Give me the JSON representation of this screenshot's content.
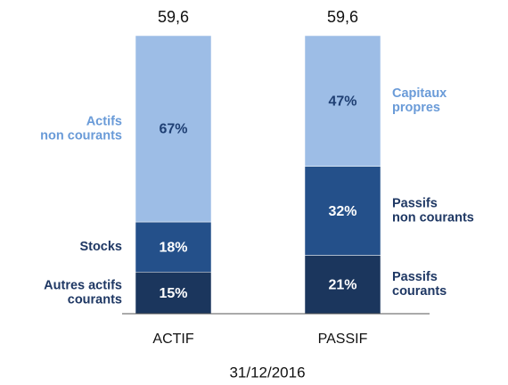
{
  "chart_data": {
    "type": "stacked_bar",
    "xlabel": "31/12/2016",
    "ylim": [
      0,
      100
    ],
    "bars": [
      {
        "category": "ACTIF",
        "total_label": "59,6",
        "segments": [
          {
            "name": [
              "Autres actifs",
              "courants"
            ],
            "value": 15,
            "value_label": "15%",
            "color": "#1b365d",
            "text_color": "#ffffff",
            "label_color": "#1f3864"
          },
          {
            "name": [
              "Stocks"
            ],
            "value": 18,
            "value_label": "18%",
            "color": "#24508a",
            "text_color": "#ffffff",
            "label_color": "#1f3864"
          },
          {
            "name": [
              "Actifs",
              "non courants"
            ],
            "value": 67,
            "value_label": "67%",
            "color": "#9dbde6",
            "text_color": "#1f3f73",
            "label_color": "#6a9bd8"
          }
        ]
      },
      {
        "category": "PASSIF",
        "total_label": "59,6",
        "segments": [
          {
            "name": [
              "Passifs",
              "courants"
            ],
            "value": 21,
            "value_label": "21%",
            "color": "#1b365d",
            "text_color": "#ffffff",
            "label_color": "#1f3864"
          },
          {
            "name": [
              "Passifs",
              "non courants"
            ],
            "value": 32,
            "value_label": "32%",
            "color": "#24508a",
            "text_color": "#ffffff",
            "label_color": "#1f3864"
          },
          {
            "name": [
              "Capitaux",
              "propres"
            ],
            "value": 47,
            "value_label": "47%",
            "color": "#9dbde6",
            "text_color": "#1f3f73",
            "label_color": "#6a9bd8"
          }
        ]
      }
    ]
  }
}
